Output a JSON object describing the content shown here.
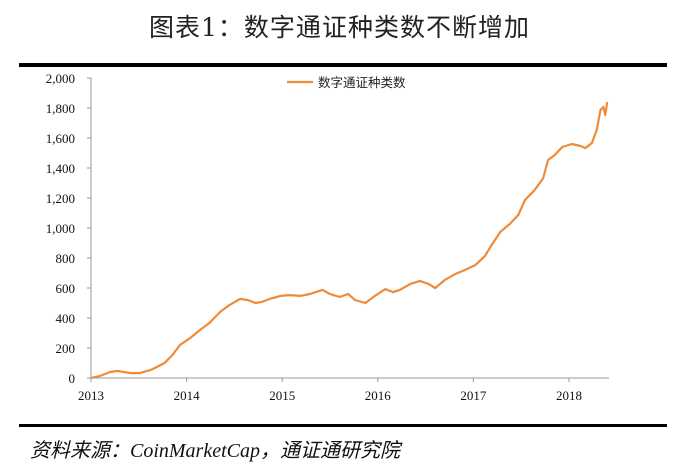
{
  "title": "图表1：数字通证种类数不断增加",
  "source": "资料来源：CoinMarketCap，通证通研究院",
  "chart_data": {
    "type": "line",
    "title": "",
    "xlabel": "",
    "ylabel": "",
    "xlim": [
      2013,
      2018.4
    ],
    "ylim": [
      0,
      2000
    ],
    "yticks": [
      0,
      200,
      400,
      600,
      800,
      1000,
      1200,
      1400,
      1600,
      1800,
      2000
    ],
    "ytick_labels": [
      "0",
      "200",
      "400",
      "600",
      "800",
      "1,000",
      "1,200",
      "1,400",
      "1,600",
      "1,800",
      "2,000"
    ],
    "xticks": [
      2013,
      2014,
      2015,
      2016,
      2017,
      2018
    ],
    "xtick_labels": [
      "2013",
      "2014",
      "2015",
      "2016",
      "2017",
      "2018"
    ],
    "grid": false,
    "legend": "top-center",
    "series": [
      {
        "name": "数字通证种类数",
        "color": "#ED8B3A",
        "x": [
          2013.0,
          2013.09,
          2013.2,
          2013.28,
          2013.41,
          2013.51,
          2013.62,
          2013.67,
          2013.77,
          2013.85,
          2013.93,
          2014.04,
          2014.14,
          2014.24,
          2014.35,
          2014.45,
          2014.56,
          2014.64,
          2014.72,
          2014.79,
          2014.87,
          2014.98,
          2015.08,
          2015.19,
          2015.29,
          2015.42,
          2015.5,
          2015.6,
          2015.69,
          2015.76,
          2015.87,
          2015.97,
          2016.08,
          2016.16,
          2016.23,
          2016.34,
          2016.44,
          2016.53,
          2016.6,
          2016.7,
          2016.81,
          2016.91,
          2017.02,
          2017.12,
          2017.19,
          2017.28,
          2017.38,
          2017.47,
          2017.54,
          2017.64,
          2017.73,
          2017.78,
          2017.85,
          2017.93,
          2018.03,
          2018.12,
          2018.17,
          2018.24,
          2018.29,
          2018.33,
          2018.36,
          2018.38,
          2018.4
        ],
        "y": [
          0,
          13,
          40,
          47,
          33,
          33,
          53,
          67,
          100,
          153,
          220,
          267,
          320,
          367,
          440,
          487,
          527,
          520,
          500,
          507,
          527,
          547,
          553,
          547,
          560,
          587,
          560,
          540,
          560,
          520,
          500,
          547,
          593,
          573,
          587,
          627,
          647,
          627,
          600,
          653,
          693,
          720,
          753,
          813,
          887,
          973,
          1027,
          1087,
          1187,
          1253,
          1333,
          1453,
          1487,
          1540,
          1560,
          1547,
          1533,
          1567,
          1653,
          1787,
          1807,
          1753,
          1840
        ]
      }
    ]
  }
}
